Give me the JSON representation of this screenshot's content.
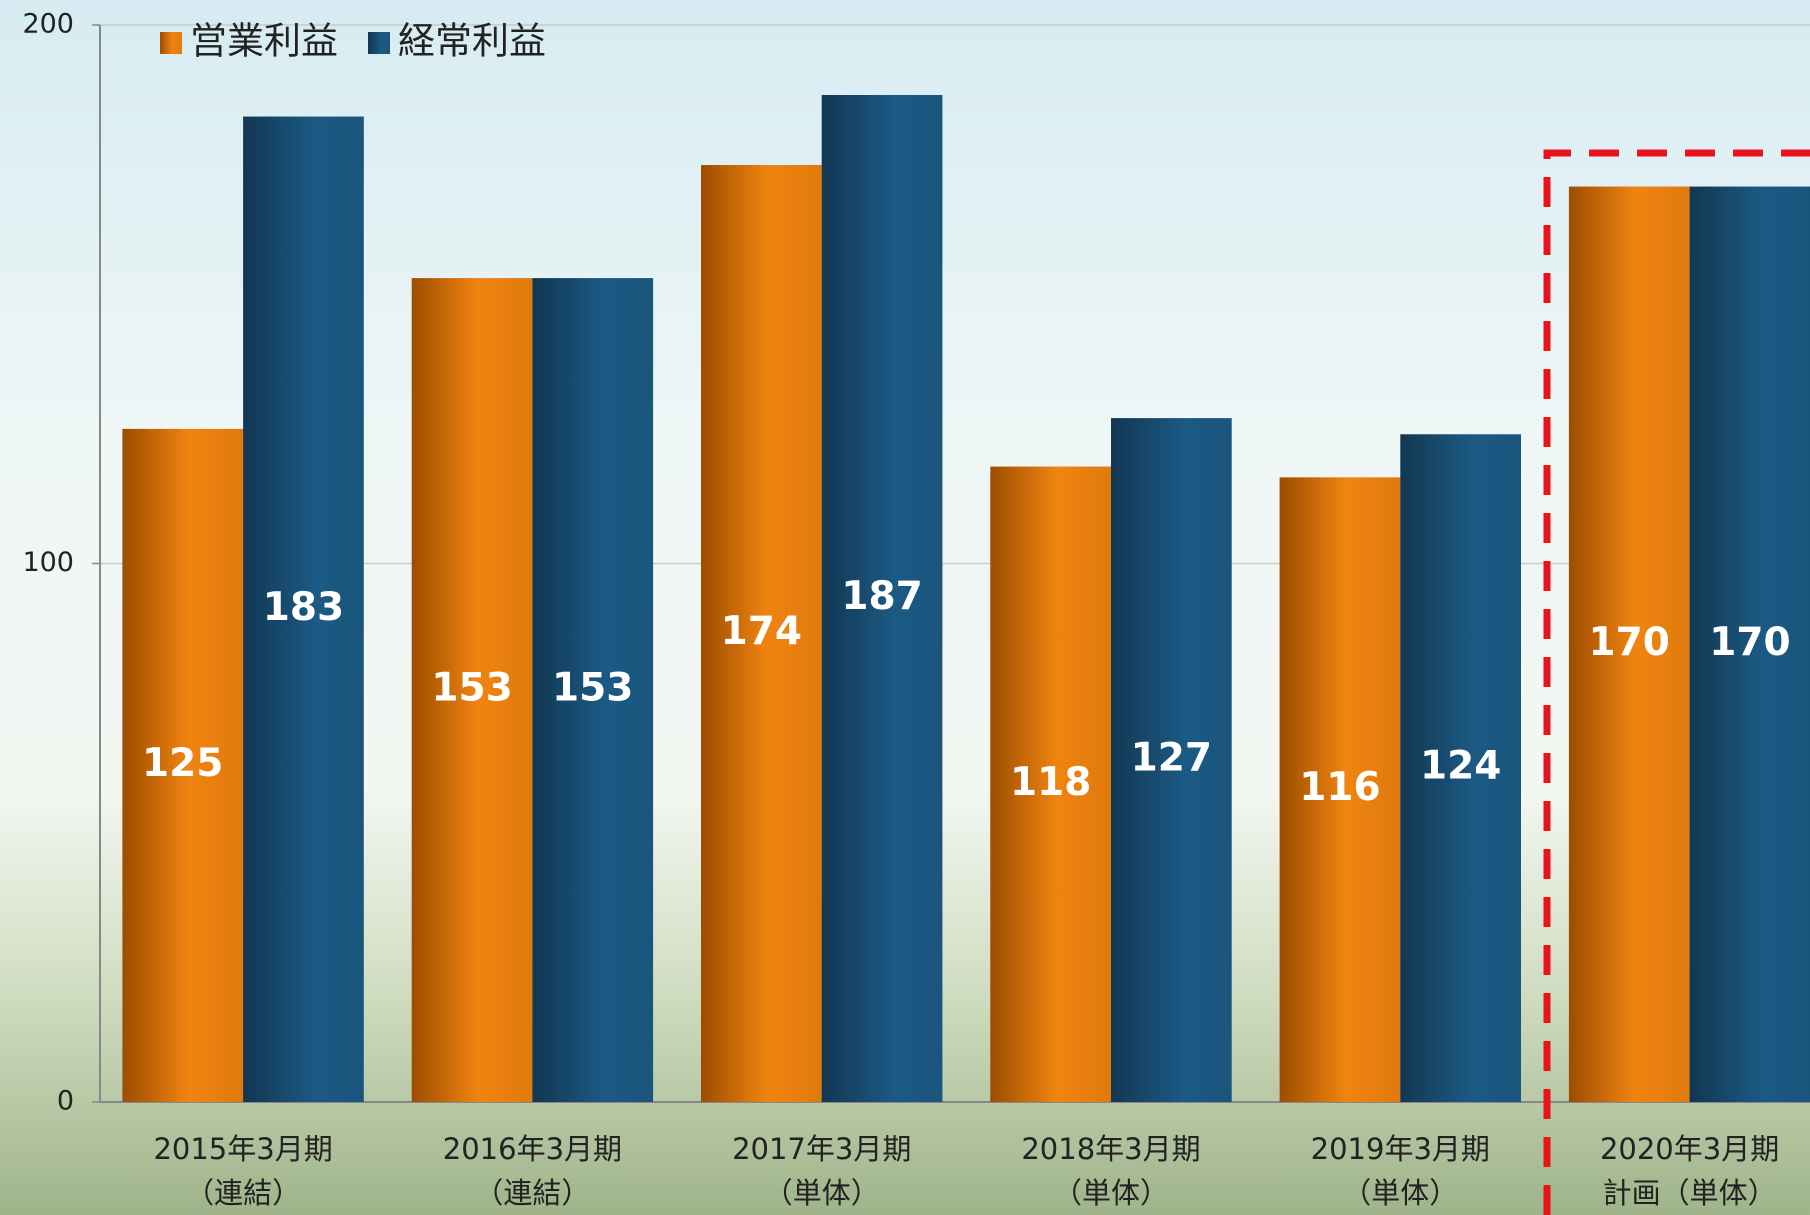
{
  "chart_data": {
    "type": "bar",
    "categories": [
      [
        "2015年3月期",
        "（連結）"
      ],
      [
        "2016年3月期",
        "（連結）"
      ],
      [
        "2017年3月期",
        "（単体）"
      ],
      [
        "2018年3月期",
        "（単体）"
      ],
      [
        "2019年3月期",
        "（単体）"
      ],
      [
        "2020年3月期",
        "計画（単体）"
      ]
    ],
    "series": [
      {
        "name": "営業利益",
        "color": "#f08410",
        "values": [
          125,
          153,
          174,
          118,
          116,
          170
        ]
      },
      {
        "name": "経常利益",
        "color": "#1b5a84",
        "values": [
          183,
          153,
          187,
          127,
          124,
          170
        ]
      }
    ],
    "ylim": [
      0,
      200
    ],
    "yticks": [
      0,
      100,
      200
    ],
    "grid": true,
    "legend": "top-left"
  }
}
